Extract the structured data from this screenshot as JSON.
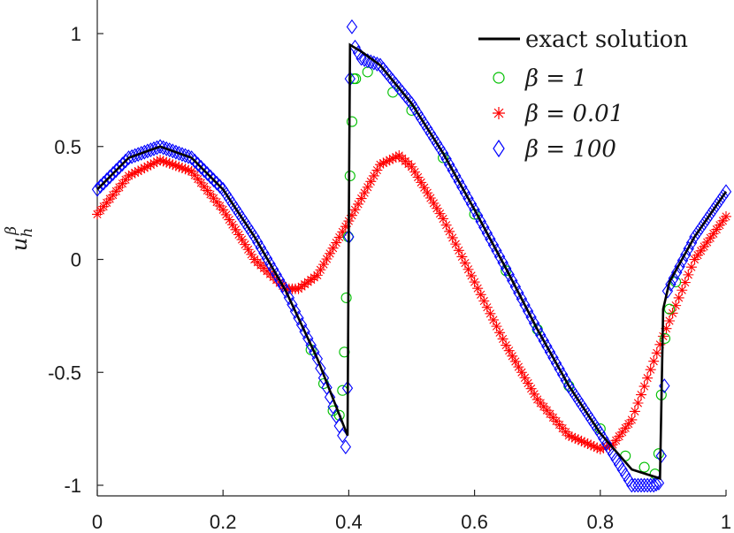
{
  "chart_data": {
    "type": "scatter",
    "title": "",
    "xlabel": "",
    "ylabel": {
      "base": "u",
      "subscript": "h",
      "superscript": "β"
    },
    "xlim": [
      0,
      1
    ],
    "ylim": [
      -1.05,
      1.05
    ],
    "x_ticks": [
      0,
      0.2,
      0.4,
      0.6,
      0.8,
      1
    ],
    "x_tick_labels": [
      "0",
      "0.2",
      "0.4",
      "0.6",
      "0.8",
      "1"
    ],
    "y_ticks": [
      -1,
      -0.5,
      0,
      0.5,
      1
    ],
    "y_tick_labels": [
      "-1",
      "-0.5",
      "0",
      "0.5",
      "1"
    ],
    "grid": false,
    "legend_position": "top-right",
    "series": [
      {
        "name": "exact solution",
        "style": "line",
        "color": "#000000",
        "x": [
          0,
          0.05,
          0.1,
          0.15,
          0.2,
          0.25,
          0.3,
          0.35,
          0.398,
          0.4,
          0.402,
          0.42,
          0.45,
          0.5,
          0.55,
          0.6,
          0.65,
          0.7,
          0.75,
          0.8,
          0.85,
          0.895,
          0.9,
          0.91,
          0.95,
          1
        ],
        "y": [
          0.31,
          0.45,
          0.5,
          0.45,
          0.31,
          0.1,
          -0.14,
          -0.44,
          -0.78,
          0.15,
          0.95,
          0.92,
          0.86,
          0.69,
          0.47,
          0.22,
          -0.04,
          -0.31,
          -0.56,
          -0.77,
          -0.93,
          -0.97,
          -0.22,
          -0.1,
          0.1,
          0.3
        ]
      },
      {
        "name": "β = 1",
        "style": "scatter",
        "marker": "circle",
        "color": "#00c000",
        "x": [
          0.34,
          0.36,
          0.375,
          0.385,
          0.39,
          0.393,
          0.396,
          0.399,
          0.402,
          0.405,
          0.408,
          0.411,
          0.43,
          0.47,
          0.5,
          0.55,
          0.6,
          0.65,
          0.7,
          0.75,
          0.8,
          0.84,
          0.87,
          0.887,
          0.893,
          0.897,
          0.903,
          0.91,
          0.92
        ],
        "y": [
          -0.4,
          -0.55,
          -0.67,
          -0.69,
          -0.58,
          -0.41,
          -0.17,
          0.1,
          0.37,
          0.61,
          0.8,
          0.8,
          0.83,
          0.74,
          0.66,
          0.45,
          0.2,
          -0.05,
          -0.31,
          -0.56,
          -0.75,
          -0.87,
          -0.92,
          -0.95,
          -0.86,
          -0.6,
          -0.35,
          -0.22,
          -0.1
        ]
      },
      {
        "name": "β = 0.01",
        "style": "scatter",
        "marker": "asterisk",
        "color": "#ff0000",
        "x": [
          0,
          0.05,
          0.1,
          0.15,
          0.2,
          0.25,
          0.3,
          0.32,
          0.35,
          0.4,
          0.45,
          0.48,
          0.5,
          0.55,
          0.6,
          0.65,
          0.7,
          0.75,
          0.8,
          0.82,
          0.85,
          0.9,
          0.95,
          1
        ],
        "y": [
          0.2,
          0.37,
          0.44,
          0.39,
          0.22,
          0.0,
          -0.13,
          -0.13,
          -0.07,
          0.17,
          0.42,
          0.46,
          0.41,
          0.18,
          -0.1,
          -0.38,
          -0.62,
          -0.78,
          -0.84,
          -0.82,
          -0.71,
          -0.34,
          0.0,
          0.19
        ]
      },
      {
        "name": "β = 100",
        "style": "scatter",
        "marker": "diamond",
        "color": "#0000ff",
        "x": [
          0,
          0.05,
          0.1,
          0.15,
          0.2,
          0.25,
          0.3,
          0.35,
          0.39,
          0.395,
          0.398,
          0.4,
          0.402,
          0.405,
          0.41,
          0.42,
          0.45,
          0.5,
          0.55,
          0.6,
          0.65,
          0.7,
          0.75,
          0.8,
          0.85,
          0.885,
          0.893,
          0.897,
          0.902,
          0.907,
          0.912,
          0.95,
          1
        ],
        "y": [
          0.31,
          0.45,
          0.5,
          0.45,
          0.31,
          0.1,
          -0.14,
          -0.44,
          -0.78,
          -0.83,
          -0.57,
          0.1,
          0.8,
          1.03,
          0.94,
          0.89,
          0.86,
          0.69,
          0.47,
          0.22,
          -0.04,
          -0.31,
          -0.56,
          -0.77,
          -1.0,
          -1.0,
          -0.99,
          -0.87,
          -0.56,
          -0.14,
          -0.11,
          0.1,
          0.3
        ]
      }
    ]
  }
}
